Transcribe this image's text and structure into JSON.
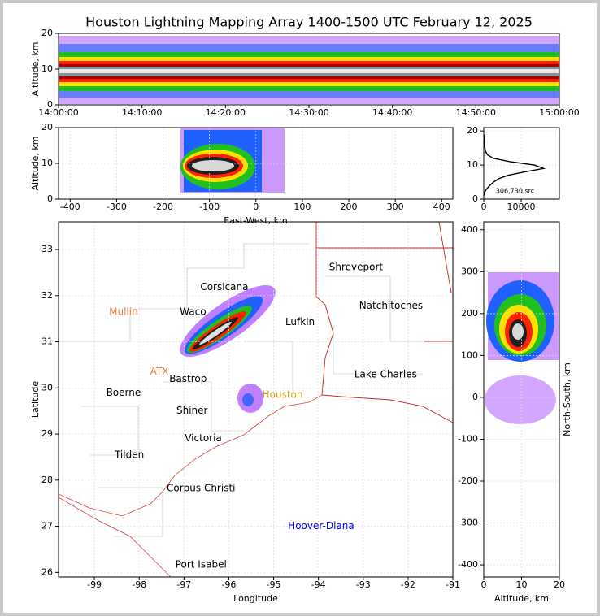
{
  "chart_data": [
    {
      "type": "heatmap",
      "title": "Houston Lightning Mapping Array 1400-1500 UTC February 12, 2025",
      "ylabel": "Altitude, km",
      "xlim": [
        0,
        60
      ],
      "xticks": [
        {
          "value": 0,
          "label": "14:00:00"
        },
        {
          "value": 10,
          "label": "14:10:00"
        },
        {
          "value": 20,
          "label": "14:20:00"
        },
        {
          "value": 30,
          "label": "14:30:00"
        },
        {
          "value": 40,
          "label": "14:40:00"
        },
        {
          "value": 50,
          "label": "14:50:00"
        },
        {
          "value": 60,
          "label": "15:00:00"
        }
      ],
      "ylim": [
        0,
        20
      ],
      "yticks": [
        0,
        10,
        20
      ],
      "grid": false
    },
    {
      "type": "heatmap",
      "xlabel": "East-West, km",
      "ylabel": "Altitude, km",
      "xlim": [
        -425,
        424
      ],
      "xticks": [
        -400,
        -300,
        -200,
        -100,
        0,
        100,
        200,
        300,
        400
      ],
      "ylim": [
        0,
        20
      ],
      "yticks": [
        0,
        10,
        20
      ],
      "grid": true
    },
    {
      "type": "line",
      "annotation": "306,730 src",
      "color": "#000000",
      "xlim": [
        0,
        20200
      ],
      "xticks": [
        0,
        10000
      ],
      "ylim": [
        0,
        21
      ],
      "yticks": [
        0,
        10,
        20
      ],
      "grid": true,
      "y": [
        1,
        2,
        3,
        4,
        5,
        6,
        7,
        8,
        9,
        10,
        11,
        12,
        13,
        14,
        15,
        17,
        19
      ],
      "values": [
        0,
        200,
        800,
        1600,
        2600,
        4000,
        6500,
        11000,
        16000,
        13500,
        7000,
        2500,
        1000,
        500,
        300,
        150,
        50
      ]
    },
    {
      "type": "map",
      "xlabel": "Longitude",
      "ylabel": "Latitude",
      "xlim": [
        -99.8,
        -91
      ],
      "xticks": [
        -99,
        -98,
        -97,
        -96,
        -95,
        -94,
        -93,
        -92,
        -91
      ],
      "ylim": [
        25.9,
        33.6
      ],
      "yticks": [
        26,
        27,
        28,
        29,
        30,
        31,
        32,
        33
      ],
      "grid": true,
      "places": [
        {
          "name": "Corsicana",
          "x": -96.1,
          "y": 32.18,
          "color": "#000000"
        },
        {
          "name": "Mullin",
          "x": -98.35,
          "y": 31.64,
          "color": "#f08040"
        },
        {
          "name": "Waco",
          "x": -96.8,
          "y": 31.64,
          "color": "#000000"
        },
        {
          "name": "Lufkin",
          "x": -94.41,
          "y": 31.42,
          "color": "#000000"
        },
        {
          "name": "Shreveport",
          "x": -93.16,
          "y": 32.61,
          "color": "#000000"
        },
        {
          "name": "Natchitoches",
          "x": -92.38,
          "y": 31.78,
          "color": "#000000"
        },
        {
          "name": "ATX",
          "x": -97.55,
          "y": 30.35,
          "color": "#f08040"
        },
        {
          "name": "Bastrop",
          "x": -96.91,
          "y": 30.19,
          "color": "#000000"
        },
        {
          "name": "Boerne",
          "x": -98.35,
          "y": 29.89,
          "color": "#000000"
        },
        {
          "name": "Lake Charles",
          "x": -92.5,
          "y": 30.29,
          "color": "#000000"
        },
        {
          "name": "Houston",
          "x": -94.8,
          "y": 29.85,
          "color": "#e0a020"
        },
        {
          "name": "Shiner",
          "x": -96.82,
          "y": 29.5,
          "color": "#000000"
        },
        {
          "name": "Victoria",
          "x": -96.57,
          "y": 28.9,
          "color": "#000000"
        },
        {
          "name": "Tilden",
          "x": -98.22,
          "y": 28.54,
          "color": "#000000"
        },
        {
          "name": "Corpus Christi",
          "x": -96.62,
          "y": 27.82,
          "color": "#000000"
        },
        {
          "name": "Hoover-Diana",
          "x": -93.94,
          "y": 27.0,
          "color": "#0000ff"
        },
        {
          "name": "Port Isabel",
          "x": -96.62,
          "y": 26.16,
          "color": "#000000"
        }
      ]
    },
    {
      "type": "heatmap",
      "xlabel": "Altitude, km",
      "ylabel": "North-South, km",
      "xlim": [
        0,
        20
      ],
      "xticks": [
        0,
        10,
        20
      ],
      "ylim": [
        -429,
        419
      ],
      "yticks": [
        -400,
        -300,
        -200,
        -100,
        0,
        100,
        200,
        300,
        400
      ],
      "grid": true
    }
  ]
}
